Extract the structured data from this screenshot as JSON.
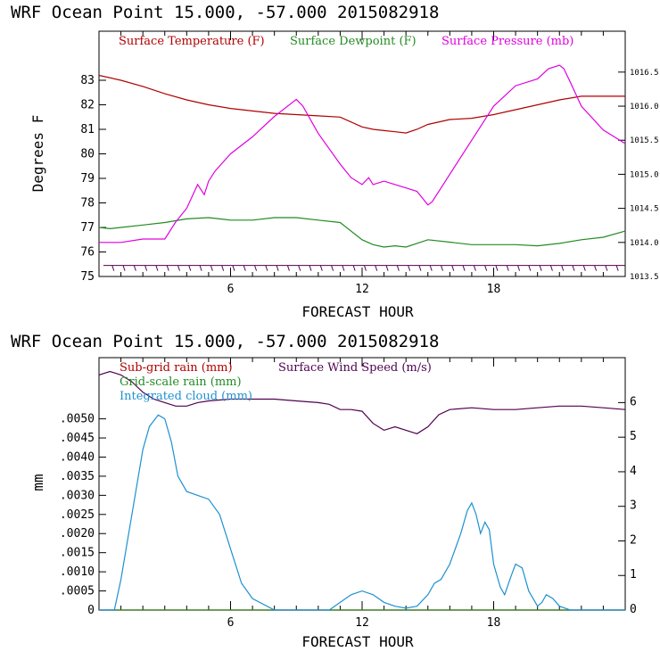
{
  "chart_data": [
    {
      "type": "line",
      "title": "WRF   Ocean Point   15.000, -57.000  2015082918",
      "xlabel": "FORECAST HOUR",
      "ylabel": "Degrees F",
      "xlim": [
        0,
        24
      ],
      "ylim": [
        75,
        85
      ],
      "y2lim": [
        1013.5,
        1017.1
      ],
      "x_ticks": [
        6,
        12,
        18
      ],
      "y_ticks": [
        75,
        76,
        77,
        78,
        79,
        80,
        81,
        82,
        83
      ],
      "y2_ticks": [
        "1013.5",
        "1014.0",
        "1014.5",
        "1015.0",
        "1015.5",
        "1016.0",
        "1016.5"
      ],
      "legend_placement": "top",
      "series": [
        {
          "name": "Surface Temperature (F)",
          "axis": "left",
          "color": "#b00000",
          "x": [
            0,
            1,
            2,
            3,
            4,
            5,
            6,
            7,
            8,
            9,
            10,
            11,
            12,
            12.5,
            13,
            13.5,
            14,
            14.5,
            15,
            16,
            17,
            18,
            19,
            20,
            21,
            22,
            23,
            24
          ],
          "y": [
            83.2,
            83.0,
            82.75,
            82.45,
            82.2,
            82.0,
            81.85,
            81.75,
            81.65,
            81.6,
            81.55,
            81.5,
            81.1,
            81.0,
            80.95,
            80.9,
            80.85,
            81.0,
            81.2,
            81.4,
            81.45,
            81.6,
            81.8,
            82.0,
            82.2,
            82.35,
            82.35,
            82.35
          ]
        },
        {
          "name": "Surface Dewpoint (F)",
          "axis": "left",
          "color": "#228b22",
          "x": [
            0,
            0.5,
            1,
            2,
            3,
            4,
            5,
            6,
            7,
            8,
            9,
            10,
            11,
            12,
            12.5,
            13,
            13.5,
            14,
            15,
            16,
            17,
            18,
            19,
            20,
            21,
            22,
            23,
            24
          ],
          "y": [
            77.0,
            76.95,
            77.0,
            77.1,
            77.2,
            77.35,
            77.4,
            77.3,
            77.3,
            77.4,
            77.4,
            77.3,
            77.2,
            76.5,
            76.3,
            76.2,
            76.25,
            76.2,
            76.5,
            76.4,
            76.3,
            76.3,
            76.3,
            76.25,
            76.35,
            76.5,
            76.6,
            76.85
          ]
        },
        {
          "name": "Surface Pressure (mb)",
          "axis": "right",
          "color": "#e000e0",
          "x": [
            0,
            1,
            2,
            3,
            3.5,
            4,
            4.5,
            4.8,
            5,
            5.3,
            6,
            7,
            8,
            9,
            9.3,
            10,
            11,
            11.5,
            12,
            12.3,
            12.5,
            13,
            13.5,
            14,
            14.5,
            15,
            15.2,
            16,
            17,
            18,
            19,
            20,
            20.5,
            21,
            21.2,
            21.5,
            22,
            23,
            24
          ],
          "y": [
            1014.0,
            1014.0,
            1014.05,
            1014.05,
            1014.3,
            1014.5,
            1014.85,
            1014.7,
            1014.9,
            1015.05,
            1015.3,
            1015.55,
            1015.85,
            1016.1,
            1016.0,
            1015.6,
            1015.15,
            1014.95,
            1014.85,
            1014.95,
            1014.85,
            1014.9,
            1014.85,
            1014.8,
            1014.75,
            1014.55,
            1014.6,
            1015.0,
            1015.5,
            1016.0,
            1016.3,
            1016.4,
            1016.55,
            1016.6,
            1016.55,
            1016.35,
            1016.0,
            1015.65,
            1015.45
          ]
        }
      ],
      "wind_barbs_y": 75.45
    },
    {
      "type": "line",
      "title": "WRF   Ocean Point   15.000, -57.000  2015082918",
      "xlabel": "FORECAST HOUR",
      "ylabel": "mm",
      "xlim": [
        0,
        24
      ],
      "ylim": [
        0,
        0.0066
      ],
      "y2lim": [
        0,
        7.3
      ],
      "x_ticks": [
        6,
        12,
        18
      ],
      "y_ticks": [
        "0",
        ".0005",
        ".0010",
        ".0015",
        ".0020",
        ".0025",
        ".0030",
        ".0035",
        ".0040",
        ".0045",
        ".0050"
      ],
      "y2_ticks": [
        "0",
        "1",
        "2",
        "3",
        "4",
        "5",
        "6"
      ],
      "legend_placement": "top-left",
      "series": [
        {
          "name": "Sub-grid rain (mm)",
          "axis": "left",
          "color": "#b00000",
          "x": [
            0,
            24
          ],
          "y": [
            0,
            0
          ]
        },
        {
          "name": "Grid-scale rain (mm)",
          "axis": "left",
          "color": "#228b22",
          "x": [
            0,
            24
          ],
          "y": [
            0,
            0
          ]
        },
        {
          "name": "Integrated cloud (mm)",
          "axis": "left",
          "color": "#1e90d0",
          "x": [
            0,
            0.7,
            1,
            1.5,
            2,
            2.3,
            2.7,
            3,
            3.3,
            3.6,
            4,
            4.5,
            5,
            5.5,
            6,
            6.5,
            7,
            8,
            9,
            10,
            10.5,
            11,
            11.5,
            12,
            12.5,
            13,
            13.5,
            14,
            14.5,
            15,
            15.3,
            15.6,
            16,
            16.5,
            16.8,
            17,
            17.2,
            17.4,
            17.6,
            17.8,
            18,
            18.3,
            18.5,
            18.8,
            19,
            19.3,
            19.6,
            20,
            20.2,
            20.4,
            20.7,
            21,
            21.5,
            22,
            24
          ],
          "y": [
            0,
            0,
            0.0008,
            0.0025,
            0.0042,
            0.0048,
            0.0051,
            0.005,
            0.0044,
            0.0035,
            0.0031,
            0.003,
            0.0029,
            0.0025,
            0.0016,
            0.0007,
            0.0003,
            0,
            0,
            0,
            0,
            0.0002,
            0.0004,
            0.0005,
            0.0004,
            0.0002,
            0.0001,
            5e-05,
            0.0001,
            0.0004,
            0.0007,
            0.0008,
            0.0012,
            0.002,
            0.0026,
            0.0028,
            0.0025,
            0.002,
            0.0023,
            0.0021,
            0.0012,
            0.0006,
            0.0004,
            0.0009,
            0.0012,
            0.0011,
            0.0005,
            0.0001,
            0.0002,
            0.0004,
            0.0003,
            0.0001,
            0,
            0,
            0
          ]
        },
        {
          "name": "Surface Wind Speed (m/s)",
          "axis": "right",
          "color": "#500050",
          "x": [
            0,
            0.5,
            1,
            1.5,
            2,
            2.5,
            3,
            3.5,
            4,
            4.5,
            5,
            6,
            7,
            8,
            9,
            10,
            10.5,
            11,
            11.5,
            12,
            12.5,
            13,
            13.5,
            14,
            14.5,
            15,
            15.5,
            16,
            17,
            18,
            19,
            20,
            21,
            22,
            23,
            24
          ],
          "y": [
            6.8,
            6.9,
            6.8,
            6.6,
            6.3,
            6.1,
            6.0,
            5.9,
            5.9,
            6.0,
            6.05,
            6.1,
            6.1,
            6.1,
            6.05,
            6.0,
            5.95,
            5.8,
            5.8,
            5.75,
            5.4,
            5.2,
            5.3,
            5.2,
            5.1,
            5.3,
            5.65,
            5.8,
            5.85,
            5.8,
            5.8,
            5.85,
            5.9,
            5.9,
            5.85,
            5.8
          ]
        }
      ]
    }
  ]
}
